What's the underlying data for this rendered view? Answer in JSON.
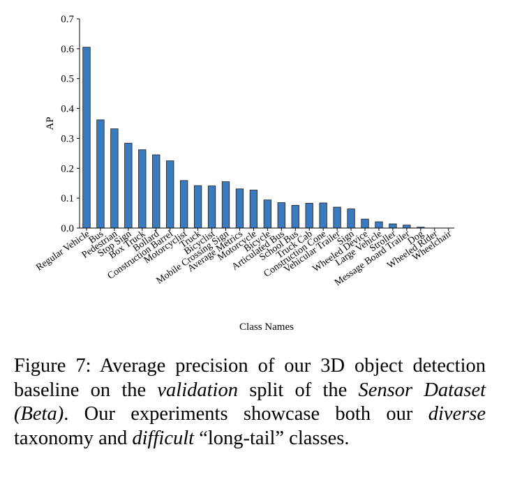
{
  "chart_data": {
    "type": "bar",
    "title": "",
    "xlabel": "Class Names",
    "ylabel": "AP",
    "ylim": [
      0,
      0.7
    ],
    "yticks": [
      "0.0",
      "0.1",
      "0.2",
      "0.3",
      "0.4",
      "0.5",
      "0.6",
      "0.7"
    ],
    "bar_color": "#3a7bbf",
    "categories": [
      "Regular Vehicle",
      "Bus",
      "Pedestrian",
      "Stop Sign",
      "Box Truck",
      "Bollard",
      "Construction Barrel",
      "Motorcyclist",
      "Truck",
      "Bicyclist",
      "Mobile Crossing Sign",
      "Average Metrics",
      "Motorcycle",
      "Bicycle",
      "Articulated Bus",
      "School Bus",
      "Truck Cab",
      "Construction Cone",
      "Vehicular Trailer",
      "Sign",
      "Wheeled Device",
      "Large Vehicle",
      "Stroller",
      "Message Board Trailer",
      "Dog",
      "Wheeled Rider",
      "Wheelchair"
    ],
    "values": [
      0.605,
      0.362,
      0.332,
      0.284,
      0.262,
      0.245,
      0.225,
      0.159,
      0.142,
      0.141,
      0.155,
      0.131,
      0.127,
      0.094,
      0.085,
      0.076,
      0.083,
      0.084,
      0.07,
      0.064,
      0.03,
      0.021,
      0.014,
      0.01,
      0.003,
      0.0,
      0.0
    ]
  },
  "caption": {
    "label": "Figure 7:",
    "t1": "Average precision of our 3D object detection baseline on the",
    "validation": "validation",
    "t2": "split of the",
    "dataset": "Sensor Dataset (Beta)",
    "t3": ". Our experiments showcase both our",
    "diverse": "diverse",
    "t4": "taxonomy and",
    "difficult": "difficult",
    "t5": "“long-tail” classes."
  }
}
